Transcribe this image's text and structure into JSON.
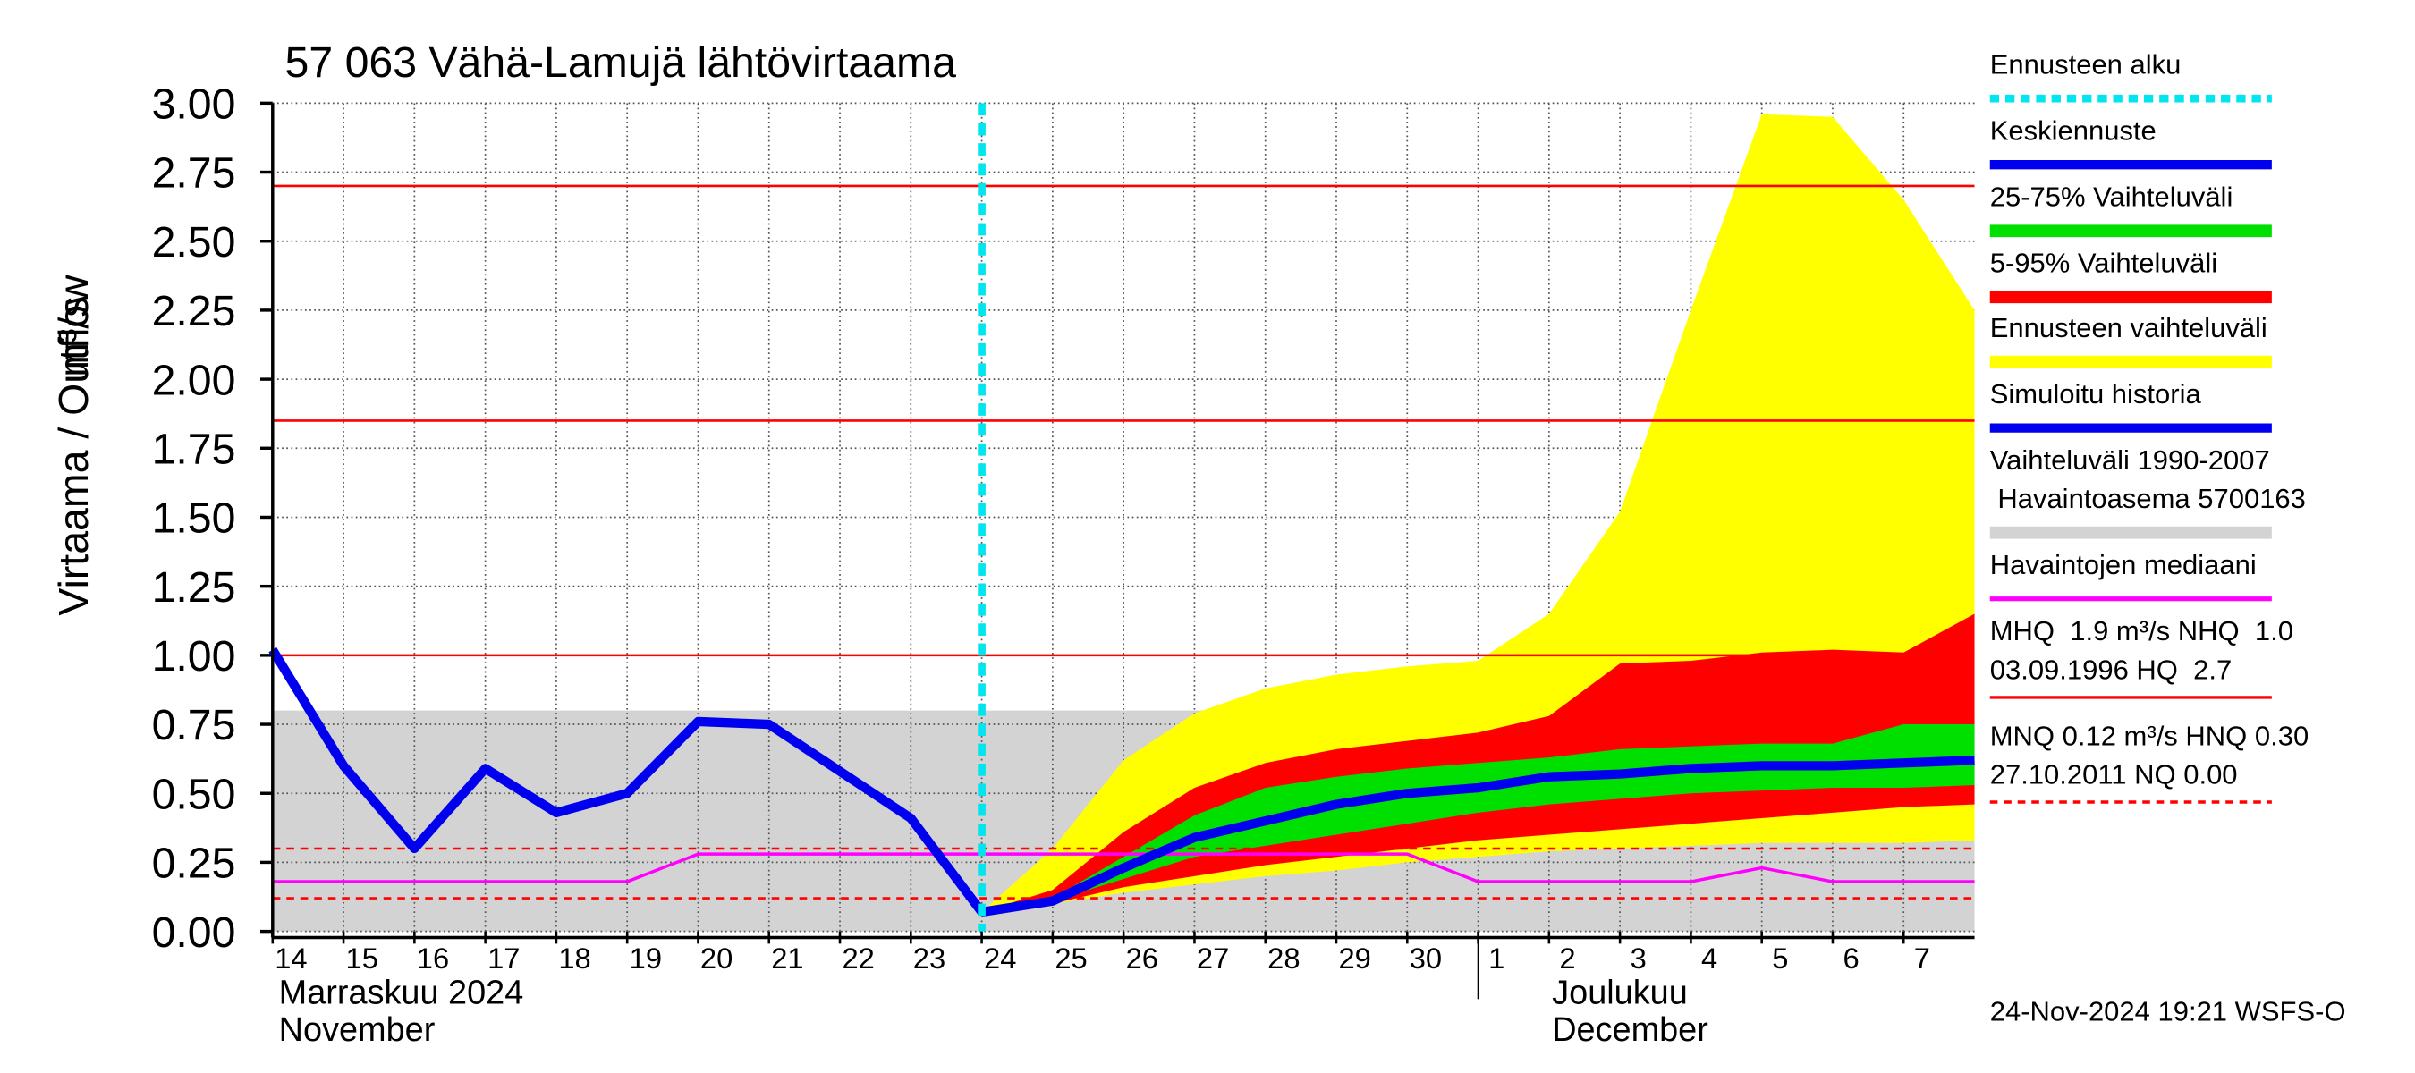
{
  "chart_data": {
    "type": "line",
    "title": "57 063 Vähä-Lamujä lähtövirtaama",
    "y_label": "Virtaama / Outflow",
    "y_unit": "m³/s",
    "month_labels": [
      {
        "x": 14,
        "lines": [
          "Marraskuu 2024",
          "November"
        ]
      },
      {
        "x": 31,
        "lines": [
          "Joulukuu",
          "December"
        ]
      }
    ],
    "timestamp": "24-Nov-2024 19:21 WSFS-O",
    "xlim": [
      14,
      38
    ],
    "ylim": [
      0,
      3
    ],
    "yticks": [
      {
        "value": 0,
        "label": "0.00"
      },
      {
        "value": 0.25,
        "label": "0.25"
      },
      {
        "value": 0.5,
        "label": "0.50"
      },
      {
        "value": 0.75,
        "label": "0.75"
      },
      {
        "value": 1,
        "label": "1.00"
      },
      {
        "value": 1.25,
        "label": "1.25"
      },
      {
        "value": 1.5,
        "label": "1.50"
      },
      {
        "value": 1.75,
        "label": "1.75"
      },
      {
        "value": 2,
        "label": "2.00"
      },
      {
        "value": 2.25,
        "label": "2.25"
      },
      {
        "value": 2.5,
        "label": "2.50"
      },
      {
        "value": 2.75,
        "label": "2.75"
      },
      {
        "value": 3,
        "label": "3.00"
      }
    ],
    "xticks": [
      14,
      15,
      16,
      17,
      18,
      19,
      20,
      21,
      22,
      23,
      24,
      25,
      26,
      27,
      28,
      29,
      30,
      {
        "value": 31,
        "label": "1"
      },
      {
        "value": 32,
        "label": "2"
      },
      {
        "value": 33,
        "label": "3"
      },
      {
        "value": 34,
        "label": "4"
      },
      {
        "value": 35,
        "label": "5"
      },
      {
        "value": 36,
        "label": "6"
      },
      {
        "value": 37,
        "label": "7"
      }
    ],
    "grid": true,
    "x": [
      14,
      15,
      16,
      17,
      18,
      19,
      20,
      21,
      22,
      23,
      24,
      25,
      26,
      27,
      28,
      29,
      30,
      31,
      32,
      33,
      34,
      35,
      36,
      37,
      38
    ],
    "forecast_start": {
      "name": "Ennusteen alku",
      "x": 24,
      "color": "#00e5ee"
    },
    "range_band": {
      "lines": [
        "Vaihteluväli 1990-2007",
        " Havaintoasema 5700163"
      ],
      "lower": 0,
      "upper": 0.8,
      "color": "#d3d3d3"
    },
    "bands": [
      {
        "name": "Ennusteen vaihteluväli",
        "color": "#ffff00",
        "lower": [
          null,
          null,
          null,
          null,
          null,
          null,
          null,
          null,
          null,
          null,
          0.07,
          0.1,
          0.14,
          0.17,
          0.2,
          0.22,
          0.25,
          0.27,
          0.29,
          0.3,
          0.31,
          0.32,
          0.32,
          0.32,
          0.33
        ],
        "upper": [
          null,
          null,
          null,
          null,
          null,
          null,
          null,
          null,
          null,
          null,
          0.07,
          0.3,
          0.62,
          0.79,
          0.88,
          0.93,
          0.96,
          0.98,
          1.15,
          1.52,
          2.25,
          2.96,
          2.95,
          2.65,
          2.25
        ]
      },
      {
        "name": "5-95% Vaihteluväli",
        "color": "#ff0000",
        "lower": [
          null,
          null,
          null,
          null,
          null,
          null,
          null,
          null,
          null,
          null,
          0.07,
          0.1,
          0.16,
          0.2,
          0.24,
          0.27,
          0.3,
          0.33,
          0.35,
          0.37,
          0.39,
          0.41,
          0.43,
          0.45,
          0.46
        ],
        "upper": [
          null,
          null,
          null,
          null,
          null,
          null,
          null,
          null,
          null,
          null,
          0.07,
          0.15,
          0.36,
          0.52,
          0.61,
          0.66,
          0.69,
          0.72,
          0.78,
          0.97,
          0.98,
          1.01,
          1.02,
          1.01,
          1.15
        ]
      },
      {
        "name": "25-75% Vaihteluväli",
        "color": "#00e000",
        "lower": [
          null,
          null,
          null,
          null,
          null,
          null,
          null,
          null,
          null,
          null,
          0.07,
          0.11,
          0.19,
          0.27,
          0.31,
          0.35,
          0.39,
          0.43,
          0.46,
          0.48,
          0.5,
          0.51,
          0.52,
          0.52,
          0.53
        ],
        "upper": [
          null,
          null,
          null,
          null,
          null,
          null,
          null,
          null,
          null,
          null,
          0.07,
          0.12,
          0.27,
          0.42,
          0.52,
          0.56,
          0.59,
          0.61,
          0.63,
          0.66,
          0.67,
          0.68,
          0.68,
          0.75,
          0.75
        ]
      }
    ],
    "series": [
      {
        "name": "Havaintojen mediaani",
        "color": "#ff00ff",
        "width": 2,
        "values": [
          0.18,
          0.18,
          0.18,
          0.18,
          0.18,
          0.18,
          0.28,
          0.28,
          0.28,
          0.28,
          0.28,
          0.28,
          0.28,
          0.28,
          0.28,
          0.28,
          0.28,
          0.18,
          0.18,
          0.18,
          0.18,
          0.23,
          0.18,
          0.18,
          0.18
        ]
      },
      {
        "name": "Simuloitu historia",
        "color": "#0000ee",
        "width": 6,
        "values": [
          1.02,
          0.6,
          0.3,
          0.59,
          0.43,
          0.5,
          0.76,
          0.75,
          0.58,
          0.41,
          0.07,
          null,
          null,
          null,
          null,
          null,
          null,
          null,
          null,
          null,
          null,
          null,
          null,
          null,
          null
        ]
      },
      {
        "name": "Keskiennuste",
        "color": "#0000ee",
        "width": 6,
        "values": [
          null,
          null,
          null,
          null,
          null,
          null,
          null,
          null,
          null,
          null,
          0.07,
          0.11,
          0.23,
          0.34,
          0.4,
          0.46,
          0.5,
          0.52,
          0.56,
          0.57,
          0.59,
          0.6,
          0.6,
          0.61,
          0.62
        ]
      }
    ],
    "reference_lines": [
      {
        "value": 2.7,
        "color": "#ff0000",
        "dashed": false
      },
      {
        "value": 1.85,
        "color": "#ff0000",
        "dashed": false
      },
      {
        "value": 1,
        "color": "#ff0000",
        "dashed": false
      },
      {
        "value": 0.3,
        "color": "#ff0000",
        "dashed": true
      },
      {
        "value": 0.12,
        "color": "#ff0000",
        "dashed": true
      }
    ],
    "stats": {
      "high": {
        "lines": [
          "MHQ  1.9 m³/s NHQ  1.0",
          "03.09.1996 HQ  2.7"
        ],
        "color": "#ff0000",
        "dashed": false
      },
      "low": {
        "lines": [
          "MNQ 0.12 m³/s HNQ 0.30",
          "27.10.2011 NQ 0.00"
        ],
        "color": "#ff0000",
        "dashed": true
      }
    }
  }
}
